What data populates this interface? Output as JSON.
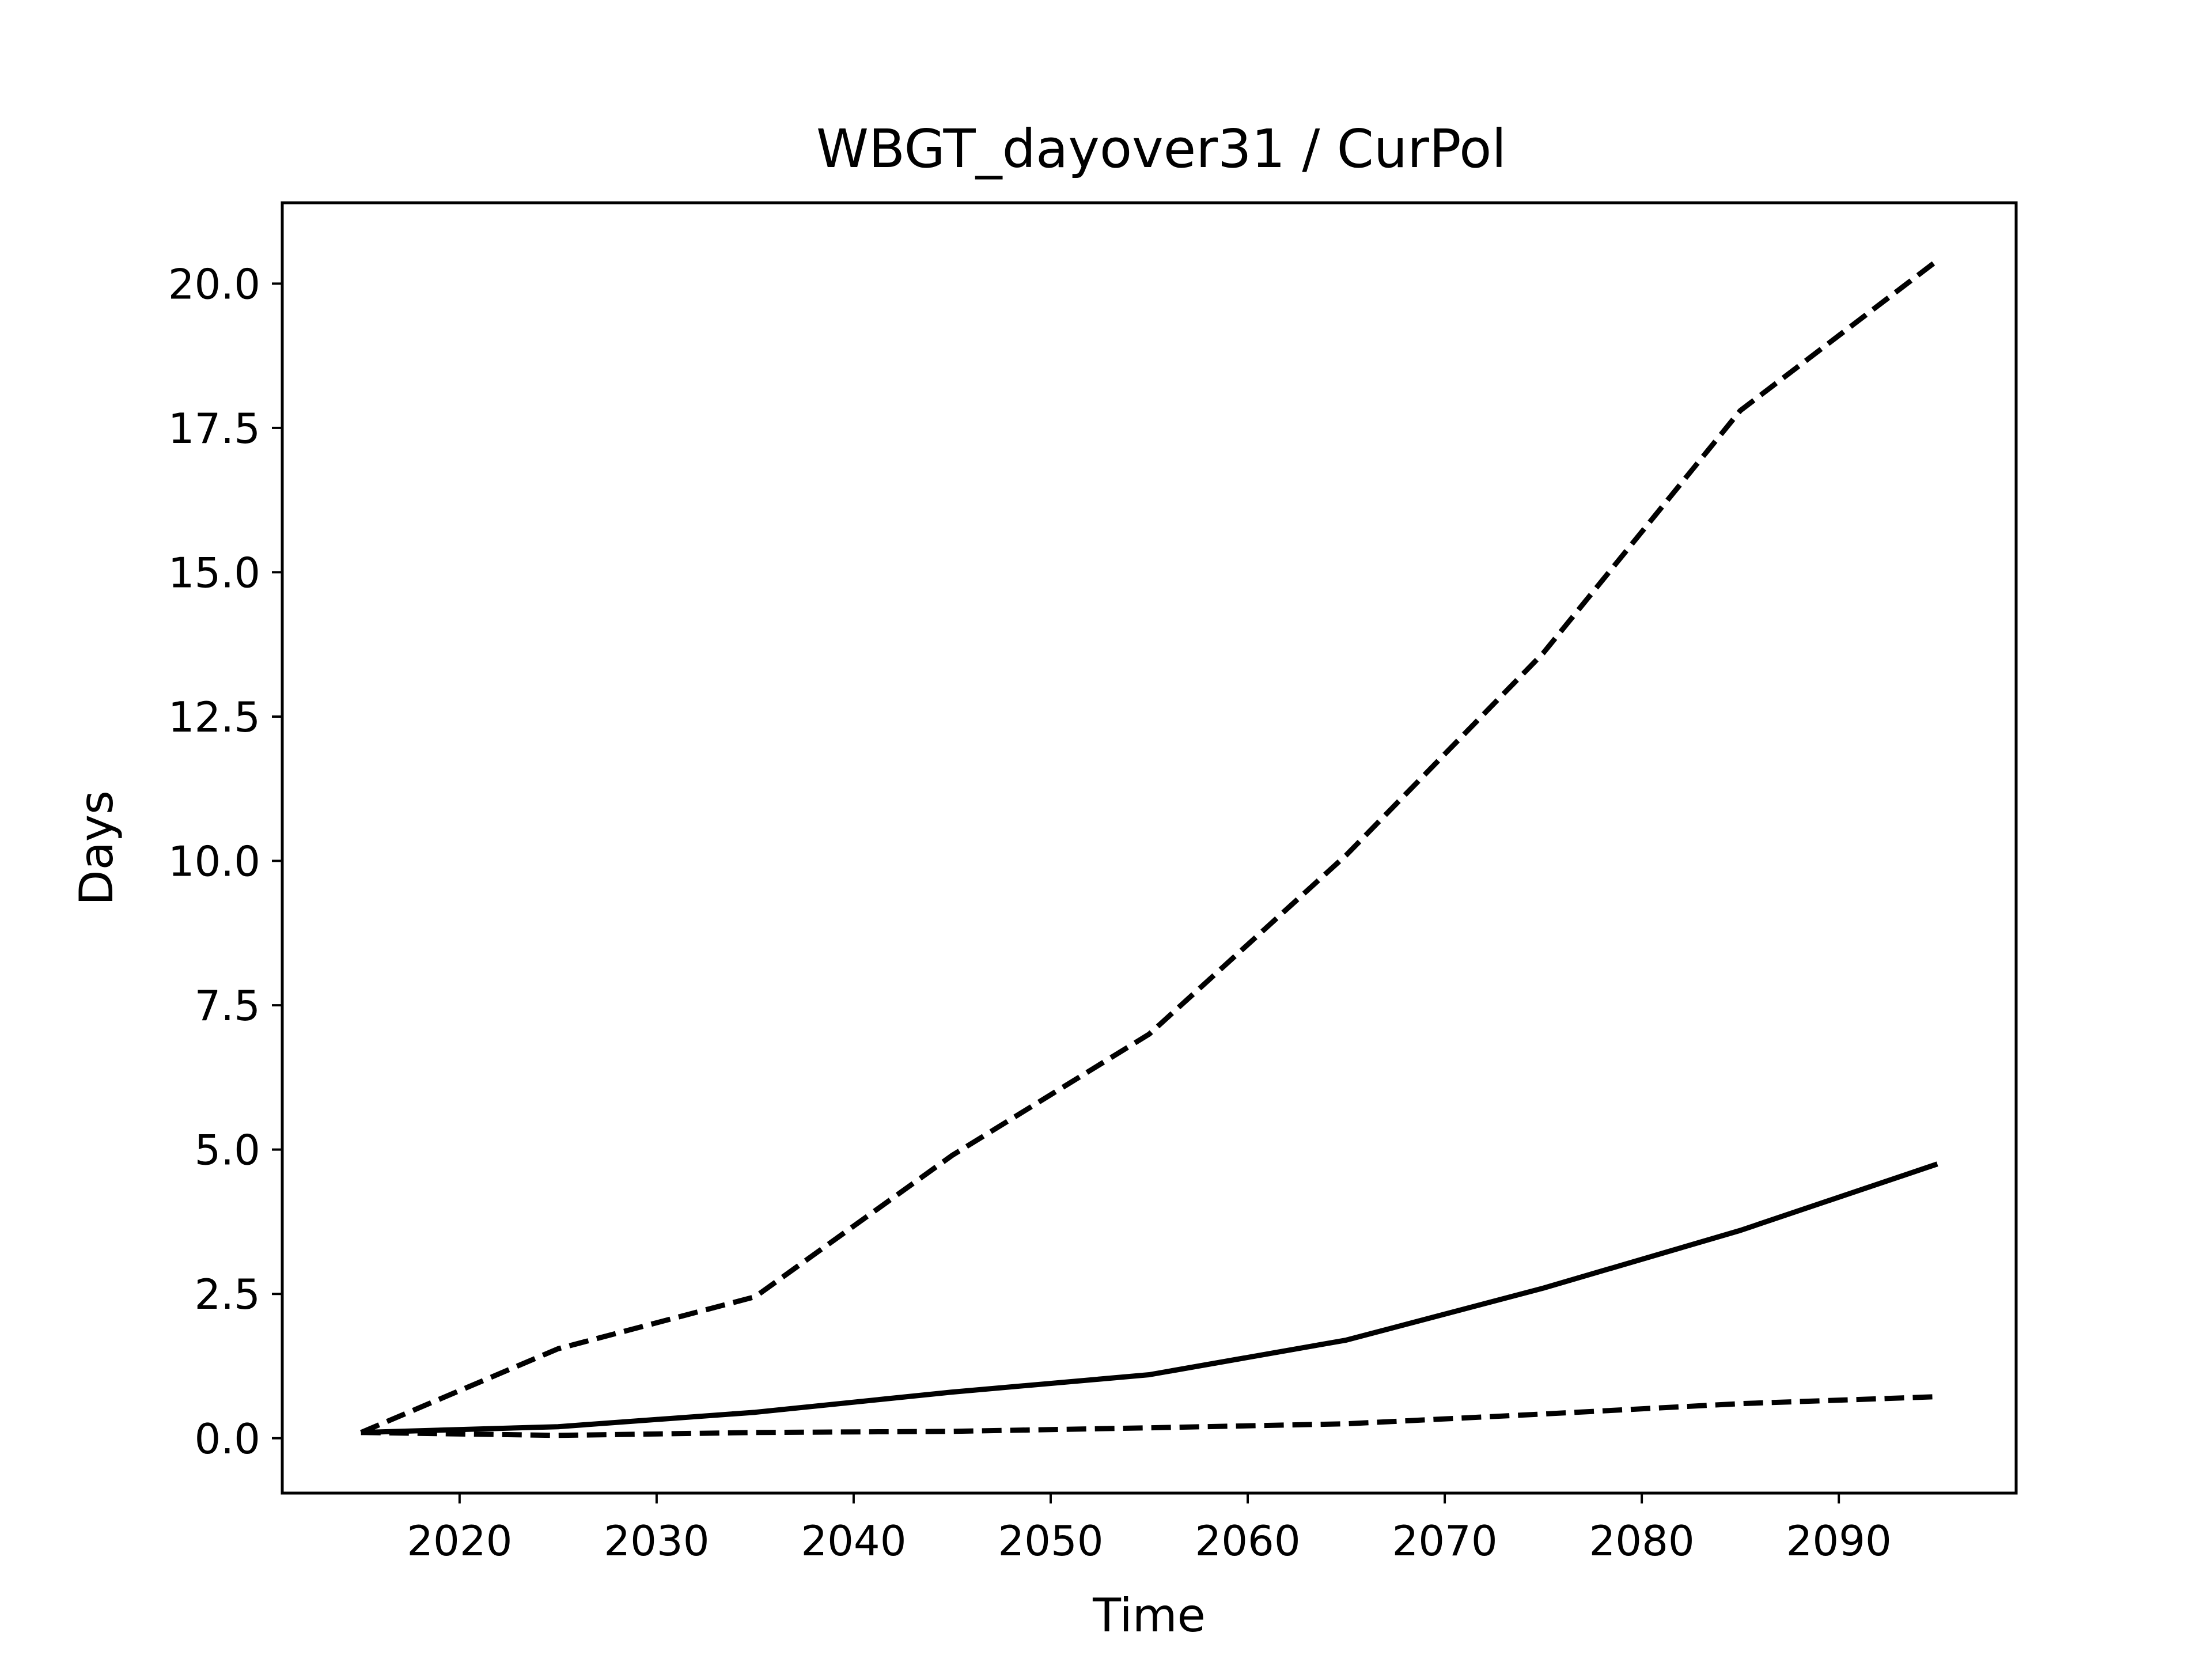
{
  "chart_data": {
    "type": "line",
    "title": "WBGT_dayover31 / CurPol",
    "xlabel": "Time",
    "ylabel": "Days",
    "xlim": [
      2011,
      2099
    ],
    "ylim": [
      -0.95,
      21.4
    ],
    "xticks": [
      2020,
      2030,
      2040,
      2050,
      2060,
      2070,
      2080,
      2090
    ],
    "yticks": [
      0.0,
      2.5,
      5.0,
      7.5,
      10.0,
      12.5,
      15.0,
      17.5,
      20.0
    ],
    "grid": false,
    "legend": "none",
    "line_color": "#000000",
    "x": [
      2015,
      2025,
      2035,
      2045,
      2055,
      2065,
      2075,
      2085,
      2095
    ],
    "series": [
      {
        "style": "dashed",
        "values": [
          0.1,
          1.55,
          2.45,
          4.9,
          7.0,
          10.1,
          13.6,
          17.8,
          20.4
        ]
      },
      {
        "style": "solid",
        "values": [
          0.1,
          0.2,
          0.45,
          0.8,
          1.1,
          1.7,
          2.6,
          3.6,
          4.75
        ]
      },
      {
        "style": "dashed",
        "values": [
          0.1,
          0.05,
          0.1,
          0.12,
          0.18,
          0.25,
          0.42,
          0.6,
          0.72
        ]
      }
    ]
  }
}
